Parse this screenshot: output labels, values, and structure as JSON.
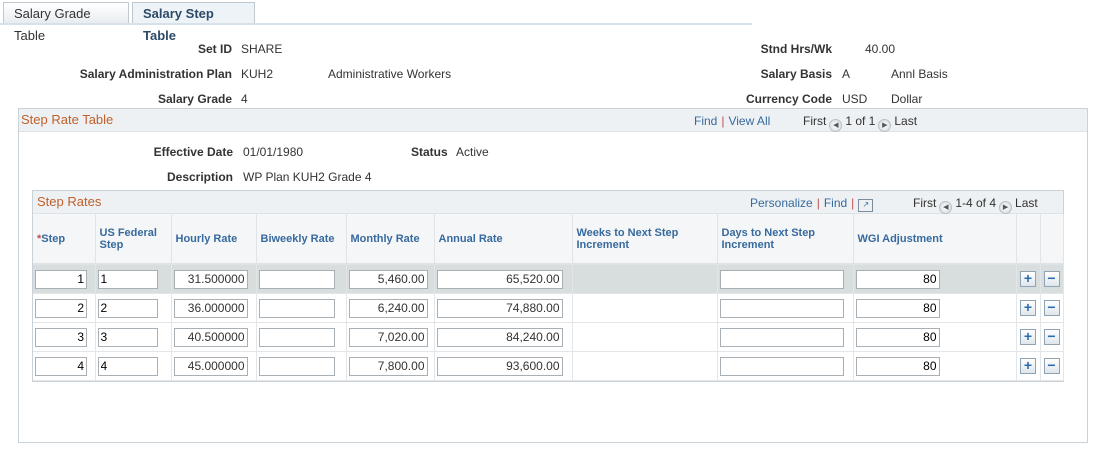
{
  "tabs": [
    {
      "label": "Salary Grade Table",
      "active": false
    },
    {
      "label": "Salary Step Table",
      "active": true
    }
  ],
  "header": {
    "setid_label": "Set ID",
    "setid": "SHARE",
    "plan_label": "Salary Administration Plan",
    "plan": "KUH2",
    "plan_desc": "Administrative Workers",
    "grade_label": "Salary Grade",
    "grade": "4",
    "hrs_label": "Stnd Hrs/Wk",
    "hrs": "40.00",
    "basis_label": "Salary Basis",
    "basis": "A",
    "basis_desc": "Annl Basis",
    "currency_label": "Currency Code",
    "currency": "USD",
    "currency_desc": "Dollar"
  },
  "step_rate_table": {
    "title": "Step Rate Table",
    "find": "Find",
    "view_all": "View All",
    "first": "First",
    "count": "1 of 1",
    "last": "Last",
    "effdt_label": "Effective Date",
    "effdt": "01/01/1980",
    "status_label": "Status",
    "status": "Active",
    "descr_label": "Description",
    "descr": "WP Plan KUH2 Grade 4"
  },
  "step_rates": {
    "title": "Step Rates",
    "personalize": "Personalize",
    "find": "Find",
    "first": "First",
    "count": "1-4 of 4",
    "last": "Last",
    "required_marker": "*",
    "columns": [
      "Step",
      "US Federal Step",
      "Hourly Rate",
      "Biweekly Rate",
      "Monthly Rate",
      "Annual Rate",
      "Weeks to Next Step Increment",
      "Days to Next Step Increment",
      "WGI Adjustment"
    ],
    "rows": [
      {
        "step": "1",
        "fed": "1",
        "hourly": "31.500000",
        "biweekly": "",
        "monthly": "5,460.00",
        "annual": "65,520.00",
        "days": "",
        "wgi": "80"
      },
      {
        "step": "2",
        "fed": "2",
        "hourly": "36.000000",
        "biweekly": "",
        "monthly": "6,240.00",
        "annual": "74,880.00",
        "days": "",
        "wgi": "80"
      },
      {
        "step": "3",
        "fed": "3",
        "hourly": "40.500000",
        "biweekly": "",
        "monthly": "7,020.00",
        "annual": "84,240.00",
        "days": "",
        "wgi": "80"
      },
      {
        "step": "4",
        "fed": "4",
        "hourly": "45.000000",
        "biweekly": "",
        "monthly": "7,800.00",
        "annual": "93,600.00",
        "days": "",
        "wgi": "80"
      }
    ]
  },
  "colors": {
    "accent": "#376a9e",
    "section_title": "#c0602b",
    "selected_row": "#d8dddd"
  }
}
